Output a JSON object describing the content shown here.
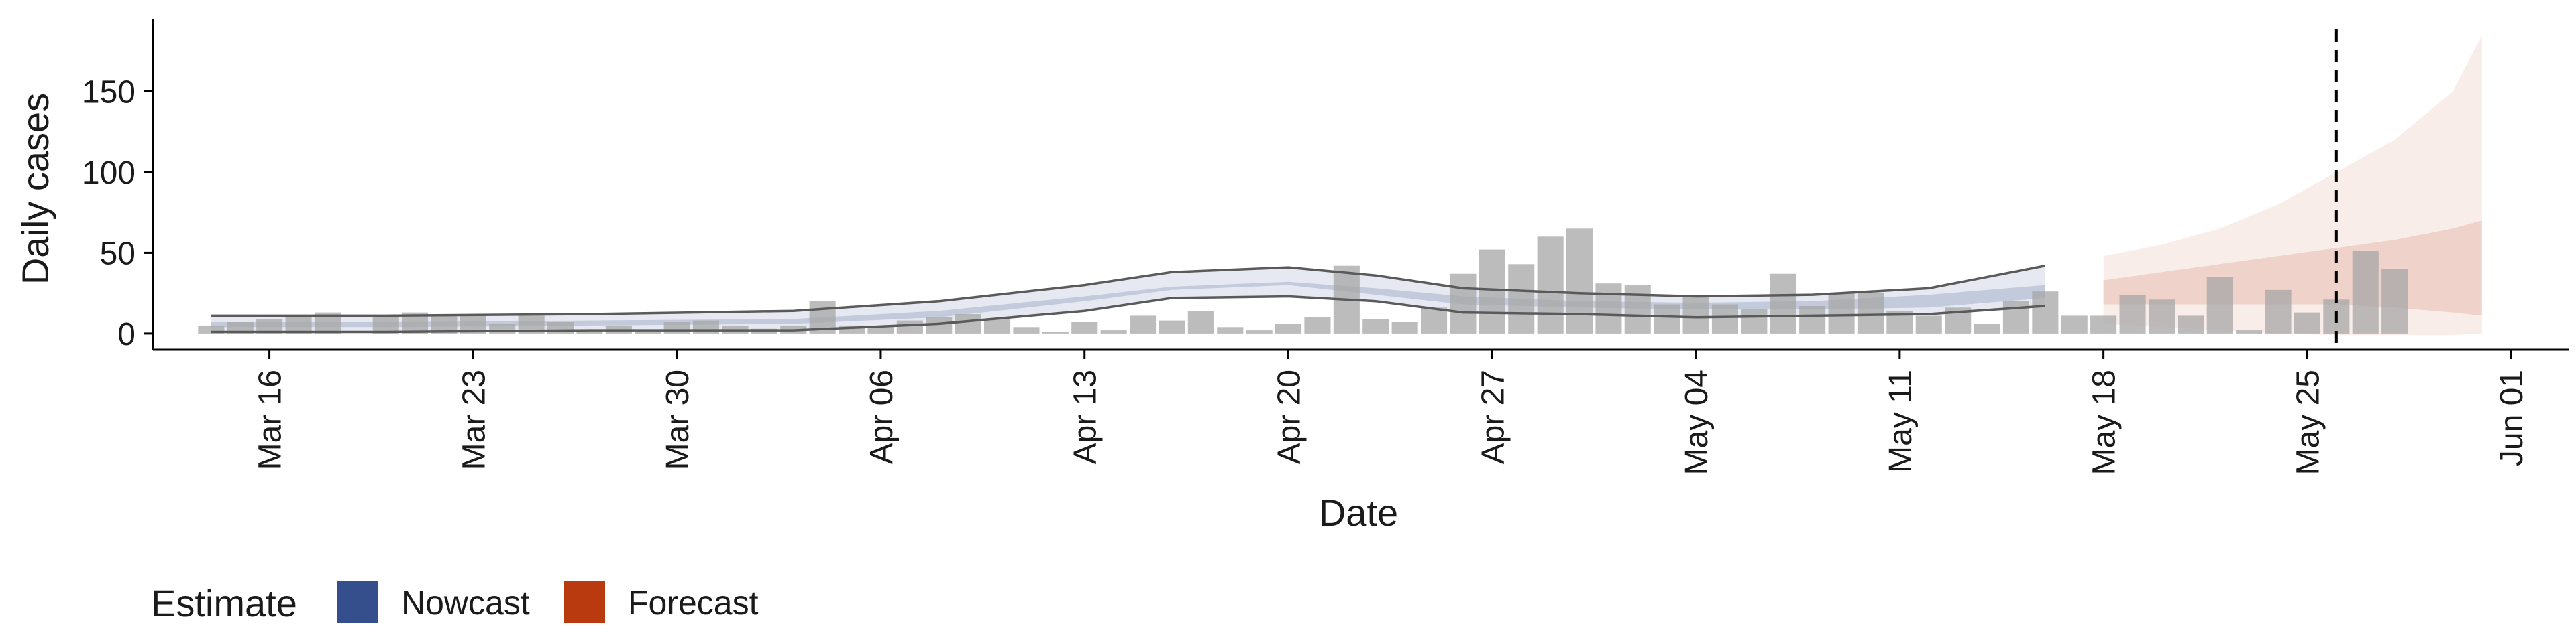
{
  "chart_data": {
    "type": "bar",
    "xlabel": "Date",
    "ylabel": "Daily cases",
    "ylim": [
      -10,
      195
    ],
    "yticks": [
      0,
      50,
      100,
      150
    ],
    "x_range": [
      "2020-03-12",
      "2020-06-03"
    ],
    "xticks": [
      {
        "date": "2020-03-16",
        "label": "Mar 16"
      },
      {
        "date": "2020-03-23",
        "label": "Mar 23"
      },
      {
        "date": "2020-03-30",
        "label": "Mar 30"
      },
      {
        "date": "2020-04-06",
        "label": "Apr 06"
      },
      {
        "date": "2020-04-13",
        "label": "Apr 13"
      },
      {
        "date": "2020-04-20",
        "label": "Apr 20"
      },
      {
        "date": "2020-04-27",
        "label": "Apr 27"
      },
      {
        "date": "2020-05-04",
        "label": "May 04"
      },
      {
        "date": "2020-05-11",
        "label": "May 11"
      },
      {
        "date": "2020-05-18",
        "label": "May 18"
      },
      {
        "date": "2020-05-25",
        "label": "May 25"
      },
      {
        "date": "2020-06-01",
        "label": "Jun 01"
      }
    ],
    "vline_date": "2020-05-26",
    "grid": false,
    "legend": {
      "placement": "bottom-left",
      "title": "Estimate",
      "items": [
        {
          "label": "Nowcast",
          "color": "#354e8c"
        },
        {
          "label": "Forecast",
          "color": "#b83a0e"
        }
      ]
    },
    "colors": {
      "bars": "#a6a6a6",
      "nowcast": "#354e8c",
      "forecast": "#b83a0e",
      "ci_lines": "#5a5a5a"
    },
    "observed": {
      "start_date": "2020-03-14",
      "values": [
        5,
        7,
        9,
        10,
        13,
        0,
        10,
        13,
        12,
        11,
        6,
        11,
        7,
        2,
        5,
        2,
        7,
        8,
        5,
        3,
        5,
        20,
        5,
        4,
        8,
        10,
        12,
        9,
        4,
        1,
        7,
        2,
        11,
        8,
        14,
        4,
        2,
        6,
        10,
        42,
        9,
        7,
        16,
        37,
        52,
        43,
        60,
        65,
        31,
        30,
        18,
        24,
        18,
        15,
        37,
        17,
        25,
        25,
        14,
        11,
        16,
        6,
        20,
        26,
        11,
        11,
        24,
        21,
        11,
        35,
        2,
        27,
        13,
        21,
        51,
        40
      ]
    },
    "nowcast": {
      "dates": [
        "2020-03-14",
        "2020-03-20",
        "2020-03-27",
        "2020-04-03",
        "2020-04-08",
        "2020-04-13",
        "2020-04-16",
        "2020-04-20",
        "2020-04-23",
        "2020-04-26",
        "2020-04-30",
        "2020-05-04",
        "2020-05-08",
        "2020-05-12",
        "2020-05-16"
      ],
      "lower90": [
        1,
        1,
        2,
        2,
        6,
        14,
        22,
        23,
        20,
        13,
        12,
        10,
        11,
        12,
        17
      ],
      "lower50": [
        4,
        4,
        5,
        6,
        10,
        20,
        27,
        30,
        24,
        18,
        16,
        15,
        15,
        16,
        22
      ],
      "upper50": [
        7,
        7,
        8,
        9,
        14,
        23,
        29,
        32,
        28,
        23,
        20,
        19,
        20,
        24,
        30
      ],
      "upper90": [
        11,
        11,
        12,
        14,
        20,
        30,
        38,
        41,
        36,
        28,
        25,
        23,
        24,
        28,
        42
      ]
    },
    "forecast": {
      "dates": [
        "2020-05-18",
        "2020-05-20",
        "2020-05-22",
        "2020-05-24",
        "2020-05-26",
        "2020-05-28",
        "2020-05-30",
        "2020-05-31"
      ],
      "lower90": [
        6,
        4,
        2,
        0,
        -1,
        -1,
        -1,
        0
      ],
      "lower50": [
        18,
        18,
        18,
        18,
        18,
        16,
        13,
        11
      ],
      "upper50": [
        33,
        38,
        43,
        48,
        53,
        58,
        65,
        70
      ],
      "upper90": [
        48,
        55,
        65,
        80,
        100,
        120,
        150,
        185
      ]
    }
  }
}
